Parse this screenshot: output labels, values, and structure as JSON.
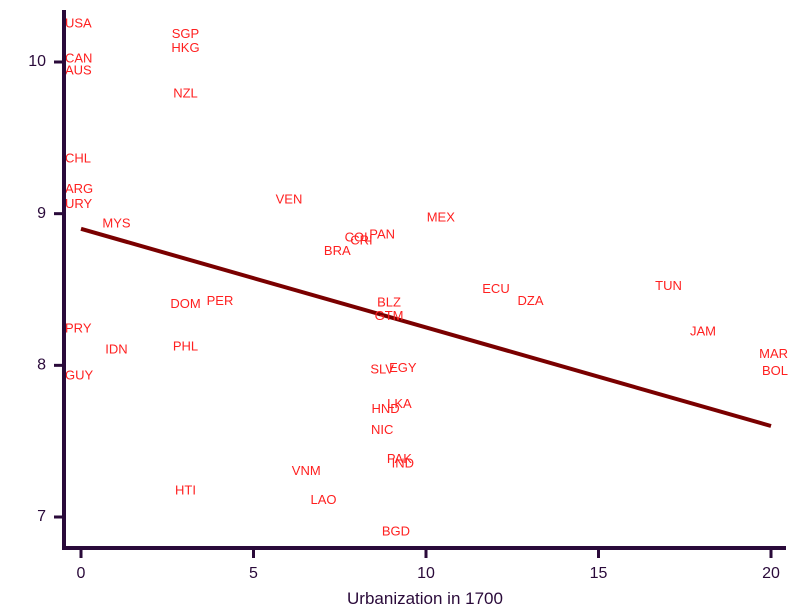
{
  "chart_data": {
    "type": "scatter",
    "xlabel": "Urbanization in 1700",
    "ylabel": "",
    "xlim": [
      -0.5,
      20.5
    ],
    "ylim": [
      6.75,
      10.35
    ],
    "xticks": [
      0,
      5,
      10,
      15,
      20
    ],
    "yticks": [
      7,
      8,
      9,
      10
    ],
    "grid": false,
    "colors": {
      "points": "#ff2020",
      "fit_line": "#7a0000",
      "axis": "#2a0a3a"
    },
    "points": [
      {
        "label": "USA",
        "x": 0,
        "y": 10.25
      },
      {
        "label": "CAN",
        "x": 0,
        "y": 10.02
      },
      {
        "label": "AUS",
        "x": 0,
        "y": 9.94
      },
      {
        "label": "SGP",
        "x": 3,
        "y": 10.18
      },
      {
        "label": "HKG",
        "x": 3,
        "y": 10.09
      },
      {
        "label": "NZL",
        "x": 3,
        "y": 9.79
      },
      {
        "label": "CHL",
        "x": 0,
        "y": 9.36
      },
      {
        "label": "ARG",
        "x": 0,
        "y": 9.16
      },
      {
        "label": "URY",
        "x": 0,
        "y": 9.06
      },
      {
        "label": "MYS",
        "x": 1,
        "y": 8.93
      },
      {
        "label": "VEN",
        "x": 6,
        "y": 9.09
      },
      {
        "label": "MEX",
        "x": 10.4,
        "y": 8.97
      },
      {
        "label": "COL",
        "x": 8,
        "y": 8.84
      },
      {
        "label": "CRI",
        "x": 8.1,
        "y": 8.82
      },
      {
        "label": "PAN",
        "x": 8.7,
        "y": 8.86
      },
      {
        "label": "BRA",
        "x": 7.4,
        "y": 8.75
      },
      {
        "label": "ECU",
        "x": 12,
        "y": 8.5
      },
      {
        "label": "DZA",
        "x": 13,
        "y": 8.42
      },
      {
        "label": "TUN",
        "x": 17,
        "y": 8.52
      },
      {
        "label": "JAM",
        "x": 18,
        "y": 8.22
      },
      {
        "label": "MAR",
        "x": 20,
        "y": 8.07
      },
      {
        "label": "BOL",
        "x": 20,
        "y": 7.96
      },
      {
        "label": "DOM",
        "x": 3,
        "y": 8.4
      },
      {
        "label": "PER",
        "x": 4,
        "y": 8.42
      },
      {
        "label": "BLZ",
        "x": 8.9,
        "y": 8.41
      },
      {
        "label": "GTM",
        "x": 8.9,
        "y": 8.32
      },
      {
        "label": "PRY",
        "x": 0,
        "y": 8.24
      },
      {
        "label": "IDN",
        "x": 1,
        "y": 8.1
      },
      {
        "label": "PHL",
        "x": 3,
        "y": 8.12
      },
      {
        "label": "SLV",
        "x": 8.7,
        "y": 7.97
      },
      {
        "label": "EGY",
        "x": 9.3,
        "y": 7.98
      },
      {
        "label": "GUY",
        "x": 0,
        "y": 7.93
      },
      {
        "label": "LKA",
        "x": 9.2,
        "y": 7.74
      },
      {
        "label": "HND",
        "x": 8.8,
        "y": 7.71
      },
      {
        "label": "NIC",
        "x": 8.7,
        "y": 7.57
      },
      {
        "label": "PAK",
        "x": 9.2,
        "y": 7.38
      },
      {
        "label": "IND",
        "x": 9.3,
        "y": 7.35
      },
      {
        "label": "VNM",
        "x": 6.5,
        "y": 7.3
      },
      {
        "label": "HTI",
        "x": 3,
        "y": 7.17
      },
      {
        "label": "LAO",
        "x": 7,
        "y": 7.11
      },
      {
        "label": "BGD",
        "x": 9.1,
        "y": 6.9
      }
    ],
    "fit_line": {
      "x": [
        0,
        20
      ],
      "y": [
        8.9,
        7.6
      ]
    }
  }
}
